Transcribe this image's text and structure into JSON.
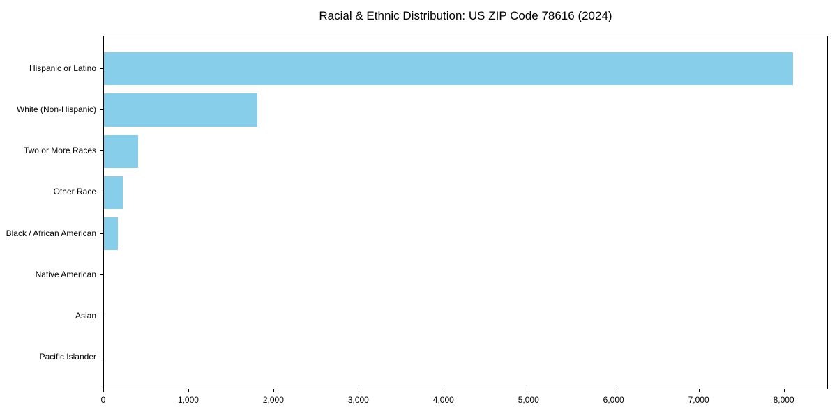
{
  "chart_data": {
    "type": "bar",
    "orientation": "horizontal",
    "title": "Racial & Ethnic Distribution: US ZIP Code 78616 (2024)",
    "categories": [
      "Hispanic or Latino",
      "White (Non-Hispanic)",
      "Two or More Races",
      "Other Race",
      "Black / African American",
      "Native American",
      "Asian",
      "Pacific Islander"
    ],
    "values": [
      8100,
      1800,
      400,
      220,
      160,
      0,
      0,
      0
    ],
    "xlabel": "",
    "ylabel": "",
    "xlim": [
      0,
      8520
    ],
    "xticks": [
      0,
      1000,
      2000,
      3000,
      4000,
      5000,
      6000,
      7000,
      8000
    ],
    "xtick_labels": [
      "0",
      "1,000",
      "2,000",
      "3,000",
      "4,000",
      "5,000",
      "6,000",
      "7,000",
      "8,000"
    ],
    "bar_color": "#87CEEB",
    "axis_color": "#000000",
    "background_color": "#ffffff",
    "grid": false,
    "legend": "none",
    "bar_relative_height": 0.8
  }
}
